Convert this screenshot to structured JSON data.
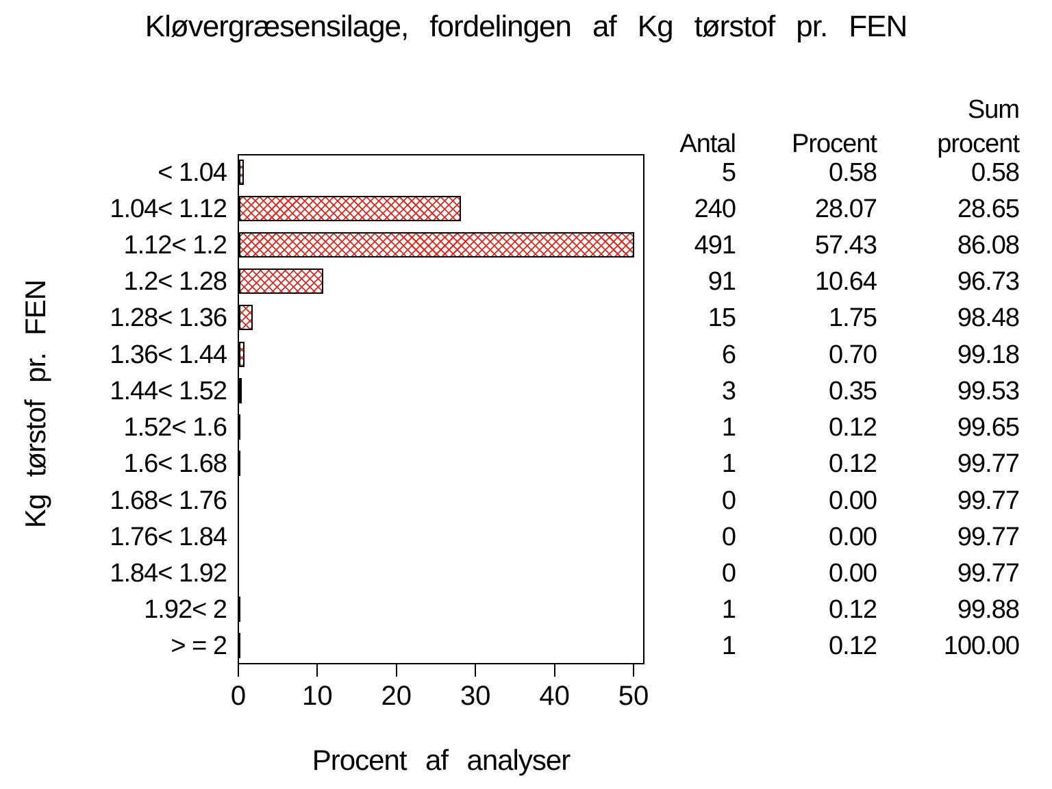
{
  "title": "Kløvergræsensilage, fordelingen af Kg tørstof pr. FEN",
  "axes": {
    "x_label": "Procent af analyser",
    "y_label": "Kg tørstof pr. FEN",
    "x_ticks": [
      0,
      10,
      20,
      30,
      40,
      50
    ]
  },
  "table": {
    "header_antal": "Antal",
    "header_procent": "Procent",
    "header_sum_line1": "Sum",
    "header_sum_line2": "procent"
  },
  "chart_data": {
    "type": "bar",
    "orientation": "horizontal",
    "title": "Kløvergræsensilage, fordelingen af Kg tørstof pr. FEN",
    "xlabel": "Procent af analyser",
    "ylabel": "Kg tørstof pr. FEN",
    "xlim": [
      0,
      50
    ],
    "bar_axis_max": 50,
    "grid": false,
    "categories": [
      "< 1.04",
      "1.04< 1.12",
      "1.12< 1.2",
      "1.2< 1.28",
      "1.28< 1.36",
      "1.36< 1.44",
      "1.44< 1.52",
      "1.52< 1.6",
      "1.6< 1.68",
      "1.68< 1.76",
      "1.76< 1.84",
      "1.84< 1.92",
      "1.92< 2",
      "> = 2"
    ],
    "series": [
      {
        "name": "Antal",
        "values": [
          5,
          240,
          491,
          91,
          15,
          6,
          3,
          1,
          1,
          0,
          0,
          0,
          1,
          1
        ]
      },
      {
        "name": "Procent",
        "values": [
          0.58,
          28.07,
          57.43,
          10.64,
          1.75,
          0.7,
          0.35,
          0.12,
          0.12,
          0.0,
          0.0,
          0.0,
          0.12,
          0.12
        ]
      },
      {
        "name": "Sum procent",
        "values": [
          0.58,
          28.65,
          86.08,
          96.73,
          98.48,
          99.18,
          99.53,
          99.65,
          99.77,
          99.77,
          99.77,
          99.77,
          99.88,
          100.0
        ]
      }
    ],
    "bar_series": "Procent"
  },
  "style": {
    "hatch_color": "#e2251c",
    "frame_color": "#000000",
    "text_color": "#000000",
    "background": "#ffffff"
  }
}
